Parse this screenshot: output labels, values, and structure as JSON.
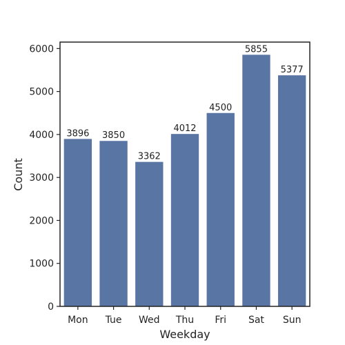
{
  "chart_data": {
    "type": "bar",
    "title": "",
    "xlabel": "Weekday",
    "ylabel": "Count",
    "categories": [
      "Mon",
      "Tue",
      "Wed",
      "Thu",
      "Fri",
      "Sat",
      "Sun"
    ],
    "values": [
      3896,
      3850,
      3362,
      4012,
      4500,
      5855,
      5377
    ],
    "data_labels": [
      "3896",
      "3850",
      "3362",
      "4012",
      "4500",
      "5855",
      "5377"
    ],
    "ylim": [
      0,
      6150
    ],
    "yticks": [
      0,
      1000,
      2000,
      3000,
      4000,
      5000,
      6000
    ],
    "ytick_labels": [
      "0",
      "1000",
      "2000",
      "3000",
      "4000",
      "5000",
      "6000"
    ],
    "grid": false,
    "legend": "none",
    "bar_color": "#5975a4",
    "axis_color": "#222222"
  }
}
